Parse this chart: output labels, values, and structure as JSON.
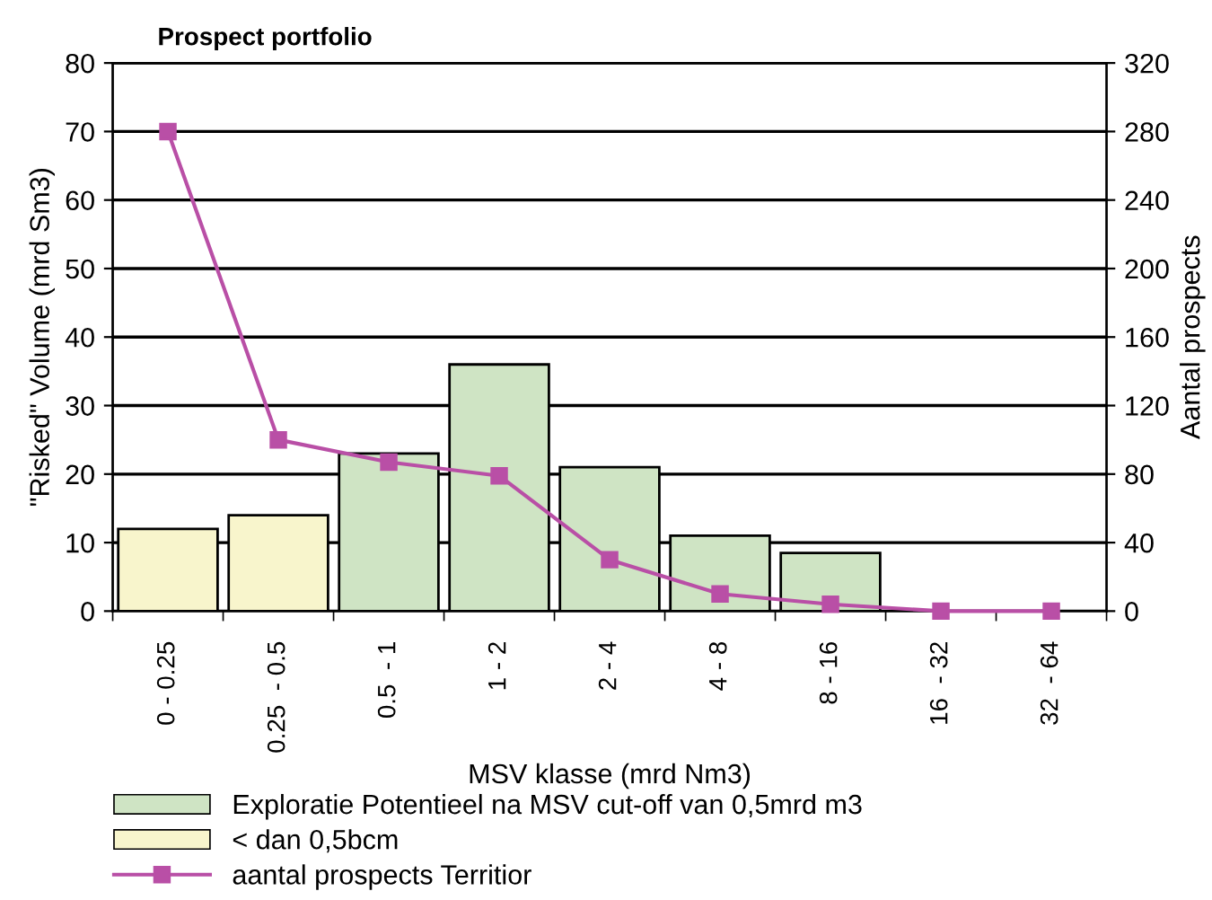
{
  "chart_data": {
    "type": "bar",
    "title": "Prospect portfolio",
    "categories": [
      "0 - 0.25",
      "0.25  - 0.5",
      "0.5  - 1",
      "1 - 2",
      "2 - 4",
      "4 - 8",
      "8 - 16",
      "16  - 32",
      "32  - 64"
    ],
    "series": [
      {
        "name": "Exploratie Potentieel na MSV cut-off van 0,5mrd m3",
        "color": "#cfe4c4",
        "values": [
          null,
          null,
          23,
          36,
          21,
          11,
          8.5,
          null,
          null
        ]
      },
      {
        "name": "< dan 0,5bcm",
        "color": "#f8f5cc",
        "values": [
          12,
          14,
          null,
          null,
          null,
          null,
          null,
          null,
          null
        ]
      },
      {
        "name": "aantal prospects Territior",
        "type": "line",
        "axis": "y2",
        "color": "#b94fa6",
        "marker": "square",
        "values": [
          280,
          100,
          87,
          79,
          30,
          10,
          4,
          0,
          0
        ]
      }
    ],
    "xlabel": "MSV klasse (mrd Nm3)",
    "ylabel": "\"Risked\" Volume (mrd Sm3)",
    "y2label": "Aantal prospects",
    "ylim": [
      0,
      80
    ],
    "yticks": [
      0,
      10,
      20,
      30,
      40,
      50,
      60,
      70,
      80
    ],
    "y2lim": [
      0,
      320
    ],
    "y2ticks": [
      0,
      40,
      80,
      120,
      160,
      200,
      240,
      280,
      320
    ],
    "grid": "y",
    "legend": "bottom"
  }
}
